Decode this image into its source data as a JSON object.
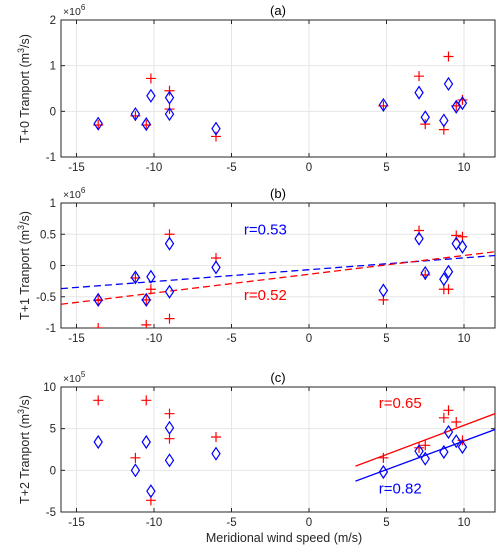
{
  "xlabel": "Meridional wind speed (m/s)",
  "colors": {
    "red": "#ff0000",
    "blue": "#0000ff",
    "axis": "#262626",
    "grid": "#e6e6e6"
  },
  "chart_data": [
    {
      "type": "scatter",
      "panel_title": "(a)",
      "ylabel": "T+0 Tranport (m$^3$/s)",
      "ylabel_text": "T+0 Tranport (m",
      "ylabel_unit": "/s)",
      "ylabel_sup": "3",
      "multiplier": "×10",
      "multiplier_exp": "6",
      "xlim": [
        -16,
        12
      ],
      "ylim": [
        -1,
        2
      ],
      "xticks": [
        -15,
        -10,
        -5,
        0,
        5,
        10
      ],
      "yticks": [
        -1,
        0,
        1,
        2
      ],
      "grid": true,
      "series": [
        {
          "marker": "plus",
          "color": "red",
          "x": [
            -13.6,
            -11.2,
            -10.5,
            -10.2,
            -9.0,
            -9.0,
            -6.0,
            4.8,
            7.1,
            7.5,
            8.7,
            9.0,
            9.5,
            9.9
          ],
          "y": [
            -0.3,
            -0.1,
            -0.3,
            0.72,
            0.45,
            0.05,
            -0.55,
            0.12,
            0.77,
            -0.28,
            -0.4,
            1.2,
            0.12,
            0.25
          ]
        },
        {
          "marker": "diamond",
          "color": "blue",
          "x": [
            -13.6,
            -11.2,
            -10.5,
            -10.2,
            -9.0,
            -9.0,
            -6.0,
            4.8,
            7.1,
            7.5,
            8.7,
            9.0,
            9.5,
            9.9
          ],
          "y": [
            -0.27,
            -0.06,
            -0.28,
            0.34,
            0.3,
            -0.06,
            -0.38,
            0.14,
            0.41,
            -0.13,
            -0.2,
            0.6,
            0.1,
            0.18
          ]
        }
      ]
    },
    {
      "type": "scatter",
      "panel_title": "(b)",
      "ylabel": "T+1 Tranport (m$^3$/s)",
      "ylabel_text": "T+1 Tranport (m",
      "ylabel_unit": "/s)",
      "ylabel_sup": "3",
      "multiplier": "×10",
      "multiplier_exp": "6",
      "xlim": [
        -16,
        12
      ],
      "ylim": [
        -1,
        1
      ],
      "xticks": [
        -15,
        -10,
        -5,
        0,
        5,
        10
      ],
      "yticks": [
        -1,
        -0.5,
        0,
        0.5,
        1
      ],
      "grid": true,
      "series": [
        {
          "marker": "plus",
          "color": "red",
          "x": [
            -13.6,
            -11.2,
            -10.5,
            -10.2,
            -9.0,
            -9.0,
            -6.0,
            4.8,
            7.1,
            7.5,
            8.7,
            9.0,
            9.5,
            9.9,
            -13.6,
            -10.5
          ],
          "y": [
            -0.56,
            -0.2,
            -0.95,
            -0.38,
            0.5,
            -0.85,
            0.12,
            -0.55,
            0.56,
            -0.15,
            -0.38,
            -0.38,
            0.48,
            0.46,
            -1.0,
            -0.55
          ]
        },
        {
          "marker": "diamond",
          "color": "blue",
          "x": [
            -13.6,
            -11.2,
            -10.5,
            -10.2,
            -9.0,
            -9.0,
            -6.0,
            4.8,
            7.1,
            7.5,
            8.7,
            9.0,
            9.5,
            9.9
          ],
          "y": [
            -0.55,
            -0.19,
            -0.55,
            -0.18,
            0.35,
            -0.42,
            -0.03,
            -0.4,
            0.43,
            -0.12,
            -0.22,
            -0.1,
            0.35,
            0.3
          ]
        }
      ],
      "fits": [
        {
          "color": "blue",
          "style": "dashed",
          "x": [
            -16,
            12
          ],
          "y": [
            -0.37,
            0.16
          ]
        },
        {
          "color": "red",
          "style": "dashed",
          "x": [
            -16,
            12
          ],
          "y": [
            -0.62,
            0.22
          ]
        }
      ],
      "annotations": [
        {
          "text": "r=0.53",
          "color": "blue",
          "x": -4.2,
          "y": 0.5
        },
        {
          "text": "r=0.52",
          "color": "red",
          "x": -4.2,
          "y": -0.55
        }
      ]
    },
    {
      "type": "scatter",
      "panel_title": "(c)",
      "ylabel": "T+2 Tranport (m$^3$/s)",
      "ylabel_text": "T+2 Tranport (m",
      "ylabel_unit": "/s)",
      "ylabel_sup": "3",
      "multiplier": "×10",
      "multiplier_exp": "5",
      "xlim": [
        -16,
        12
      ],
      "ylim": [
        -5,
        10
      ],
      "xticks": [
        -15,
        -10,
        -5,
        0,
        5,
        10
      ],
      "yticks": [
        -5,
        0,
        5,
        10
      ],
      "grid": true,
      "series": [
        {
          "marker": "plus",
          "color": "red",
          "x": [
            -13.6,
            -11.2,
            -10.5,
            -10.2,
            -9.0,
            -9.0,
            -6.0,
            4.8,
            7.1,
            7.5,
            8.7,
            9.0,
            9.5,
            9.9
          ],
          "y": [
            8.4,
            1.5,
            8.4,
            -3.6,
            6.8,
            3.8,
            4.0,
            1.5,
            2.7,
            3.0,
            6.3,
            7.2,
            5.8,
            3.6
          ]
        },
        {
          "marker": "diamond",
          "color": "blue",
          "x": [
            -13.6,
            -11.2,
            -10.5,
            -10.2,
            -9.0,
            -9.0,
            -6.0,
            4.8,
            7.1,
            7.5,
            8.7,
            9.0,
            9.5,
            9.9
          ],
          "y": [
            3.4,
            0.0,
            3.4,
            -2.5,
            5.1,
            1.2,
            2.0,
            -0.2,
            2.3,
            1.4,
            2.2,
            4.6,
            3.5,
            2.8
          ]
        }
      ],
      "fits": [
        {
          "color": "red",
          "style": "solid",
          "x": [
            3,
            12
          ],
          "y": [
            0.5,
            6.8
          ]
        },
        {
          "color": "blue",
          "style": "solid",
          "x": [
            3,
            12
          ],
          "y": [
            -1.3,
            4.9
          ]
        }
      ],
      "annotations": [
        {
          "text": "r=0.65",
          "color": "red",
          "x": 4.5,
          "y": 7.5
        },
        {
          "text": "r=0.82",
          "color": "blue",
          "x": 4.5,
          "y": -2.8
        }
      ]
    }
  ]
}
